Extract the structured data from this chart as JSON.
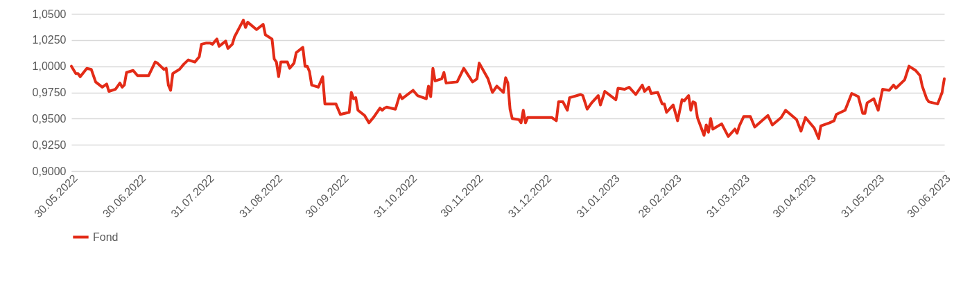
{
  "chart_data": {
    "type": "line",
    "x": [
      "2022-05-30",
      "2022-06-01",
      "2022-06-02",
      "2022-06-03",
      "2022-06-06",
      "2022-06-08",
      "2022-06-10",
      "2022-06-13",
      "2022-06-15",
      "2022-06-16",
      "2022-06-19",
      "2022-06-21",
      "2022-06-22",
      "2022-06-23",
      "2022-06-24",
      "2022-06-27",
      "2022-06-29",
      "2022-07-04",
      "2022-07-07",
      "2022-07-08",
      "2022-07-11",
      "2022-07-12",
      "2022-07-13",
      "2022-07-14",
      "2022-07-15",
      "2022-07-18",
      "2022-07-20",
      "2022-07-22",
      "2022-07-25",
      "2022-07-27",
      "2022-07-28",
      "2022-07-30",
      "2022-08-01",
      "2022-08-02",
      "2022-08-04",
      "2022-08-05",
      "2022-08-08",
      "2022-08-09",
      "2022-08-11",
      "2022-08-12",
      "2022-08-14",
      "2022-08-16",
      "2022-08-17",
      "2022-08-18",
      "2022-08-22",
      "2022-08-25",
      "2022-08-26",
      "2022-08-29",
      "2022-08-30",
      "2022-08-31",
      "2022-09-01",
      "2022-09-02",
      "2022-09-05",
      "2022-09-06",
      "2022-09-08",
      "2022-09-09",
      "2022-09-12",
      "2022-09-13",
      "2022-09-14",
      "2022-09-15",
      "2022-09-16",
      "2022-09-19",
      "2022-09-21",
      "2022-09-22",
      "2022-09-27",
      "2022-09-29",
      "2022-10-03",
      "2022-10-04",
      "2022-10-05",
      "2022-10-06",
      "2022-10-07",
      "2022-10-10",
      "2022-10-12",
      "2022-10-14",
      "2022-10-17",
      "2022-10-18",
      "2022-10-19",
      "2022-10-20",
      "2022-10-24",
      "2022-10-26",
      "2022-10-27",
      "2022-11-01",
      "2022-11-03",
      "2022-11-07",
      "2022-11-08",
      "2022-11-09",
      "2022-11-10",
      "2022-11-11",
      "2022-11-14",
      "2022-11-15",
      "2022-11-16",
      "2022-11-21",
      "2022-11-24",
      "2022-11-28",
      "2022-11-30",
      "2022-12-01",
      "2022-12-05",
      "2022-12-07",
      "2022-12-09",
      "2022-12-12",
      "2022-12-13",
      "2022-12-14",
      "2022-12-15",
      "2022-12-16",
      "2022-12-19",
      "2022-12-20",
      "2022-12-21",
      "2022-12-22",
      "2022-12-23",
      "2023-01-03",
      "2023-01-05",
      "2023-01-06",
      "2023-01-08",
      "2023-01-10",
      "2023-01-11",
      "2023-01-16",
      "2023-01-17",
      "2023-01-19",
      "2023-01-21",
      "2023-01-24",
      "2023-01-25",
      "2023-01-27",
      "2023-02-01",
      "2023-02-02",
      "2023-02-05",
      "2023-02-07",
      "2023-02-10",
      "2023-02-13",
      "2023-02-14",
      "2023-02-16",
      "2023-02-17",
      "2023-02-20",
      "2023-02-22",
      "2023-02-23",
      "2023-02-24",
      "2023-02-27",
      "2023-03-01",
      "2023-03-03",
      "2023-03-04",
      "2023-03-06",
      "2023-03-07",
      "2023-03-08",
      "2023-03-09",
      "2023-03-10",
      "2023-03-13",
      "2023-03-14",
      "2023-03-15",
      "2023-03-16",
      "2023-03-17",
      "2023-03-21",
      "2023-03-24",
      "2023-03-27",
      "2023-03-28",
      "2023-03-29",
      "2023-03-31",
      "2023-04-03",
      "2023-04-05",
      "2023-04-11",
      "2023-04-13",
      "2023-04-17",
      "2023-04-19",
      "2023-04-24",
      "2023-04-26",
      "2023-04-28",
      "2023-05-02",
      "2023-05-04",
      "2023-05-05",
      "2023-05-09",
      "2023-05-11",
      "2023-05-12",
      "2023-05-16",
      "2023-05-19",
      "2023-05-22",
      "2023-05-24",
      "2023-05-25",
      "2023-05-26",
      "2023-05-29",
      "2023-05-31",
      "2023-06-02",
      "2023-06-05",
      "2023-06-07",
      "2023-06-08",
      "2023-06-12",
      "2023-06-14",
      "2023-06-17",
      "2023-06-19",
      "2023-06-20",
      "2023-06-22",
      "2023-06-23",
      "2023-06-27",
      "2023-06-29",
      "2023-06-30"
    ],
    "series": [
      {
        "name": "Fond",
        "color": "#e32b17",
        "values": [
          1.0,
          0.993,
          0.993,
          0.99,
          0.998,
          0.997,
          0.985,
          0.98,
          0.983,
          0.976,
          0.978,
          0.984,
          0.98,
          0.982,
          0.994,
          0.996,
          0.991,
          0.991,
          1.004,
          1.003,
          0.997,
          0.998,
          0.982,
          0.977,
          0.993,
          0.997,
          1.002,
          1.006,
          1.004,
          1.009,
          1.021,
          1.022,
          1.022,
          1.021,
          1.026,
          1.019,
          1.024,
          1.017,
          1.021,
          1.028,
          1.036,
          1.044,
          1.037,
          1.042,
          1.035,
          1.04,
          1.03,
          1.026,
          1.007,
          1.004,
          0.99,
          1.004,
          1.004,
          0.998,
          1.003,
          1.013,
          1.018,
          1.0,
          1.0,
          0.995,
          0.982,
          0.98,
          0.99,
          0.964,
          0.964,
          0.954,
          0.956,
          0.975,
          0.969,
          0.97,
          0.958,
          0.953,
          0.946,
          0.951,
          0.96,
          0.958,
          0.96,
          0.961,
          0.959,
          0.973,
          0.969,
          0.977,
          0.972,
          0.969,
          0.981,
          0.971,
          0.998,
          0.986,
          0.988,
          0.994,
          0.984,
          0.985,
          0.998,
          0.985,
          0.988,
          1.003,
          0.988,
          0.975,
          0.981,
          0.975,
          0.989,
          0.984,
          0.959,
          0.95,
          0.949,
          0.946,
          0.958,
          0.946,
          0.951,
          0.951,
          0.948,
          0.966,
          0.966,
          0.958,
          0.97,
          0.973,
          0.972,
          0.959,
          0.965,
          0.972,
          0.963,
          0.976,
          0.968,
          0.979,
          0.978,
          0.98,
          0.973,
          0.982,
          0.976,
          0.98,
          0.974,
          0.975,
          0.964,
          0.964,
          0.956,
          0.963,
          0.948,
          0.968,
          0.967,
          0.972,
          0.958,
          0.966,
          0.965,
          0.951,
          0.934,
          0.944,
          0.937,
          0.95,
          0.94,
          0.945,
          0.933,
          0.94,
          0.936,
          0.943,
          0.952,
          0.952,
          0.942,
          0.953,
          0.944,
          0.951,
          0.958,
          0.949,
          0.938,
          0.951,
          0.941,
          0.931,
          0.943,
          0.946,
          0.948,
          0.954,
          0.958,
          0.974,
          0.971,
          0.955,
          0.955,
          0.965,
          0.969,
          0.958,
          0.978,
          0.977,
          0.982,
          0.979,
          0.987,
          1.0,
          0.996,
          0.991,
          0.981,
          0.969,
          0.966,
          0.964,
          0.975,
          0.988
        ]
      }
    ],
    "xlim": [
      "2022-05-30",
      "2023-06-30"
    ],
    "xticks": [
      {
        "value": "2022-05-30",
        "label": "30.05.2022"
      },
      {
        "value": "2022-06-30",
        "label": "30.06.2022"
      },
      {
        "value": "2022-07-31",
        "label": "31.07.2022"
      },
      {
        "value": "2022-08-31",
        "label": "31.08.2022"
      },
      {
        "value": "2022-09-30",
        "label": "30.09.2022"
      },
      {
        "value": "2022-10-31",
        "label": "31.10.2022"
      },
      {
        "value": "2022-11-30",
        "label": "30.11.2022"
      },
      {
        "value": "2022-12-31",
        "label": "31.12.2022"
      },
      {
        "value": "2023-01-31",
        "label": "31.01.2023"
      },
      {
        "value": "2023-02-28",
        "label": "28.02.2023"
      },
      {
        "value": "2023-03-31",
        "label": "31.03.2023"
      },
      {
        "value": "2023-04-30",
        "label": "30.04.2023"
      },
      {
        "value": "2023-05-31",
        "label": "31.05.2023"
      },
      {
        "value": "2023-06-30",
        "label": "30.06.2023"
      }
    ],
    "ylim": [
      0.9,
      1.05
    ],
    "yticks": [
      {
        "value": 0.9,
        "label": "0,9000"
      },
      {
        "value": 0.925,
        "label": "0,9250"
      },
      {
        "value": 0.95,
        "label": "0,9500"
      },
      {
        "value": 0.975,
        "label": "0,9750"
      },
      {
        "value": 1.0,
        "label": "1,0000"
      },
      {
        "value": 1.025,
        "label": "1,0250"
      },
      {
        "value": 1.05,
        "label": "1,0500"
      }
    ],
    "grid": "y",
    "legend": "bottom",
    "line_style": "solid"
  }
}
